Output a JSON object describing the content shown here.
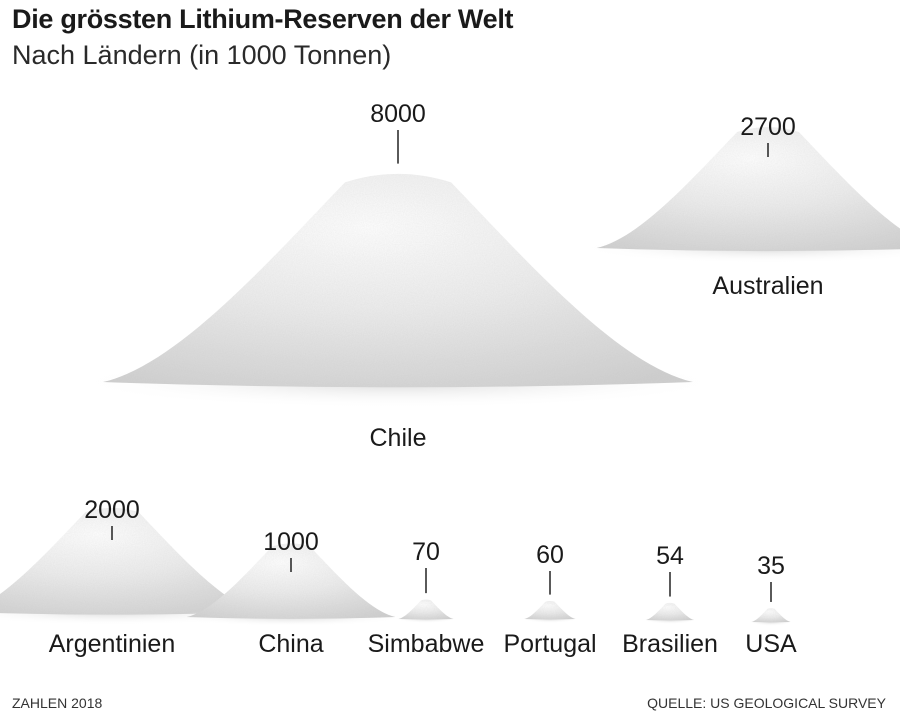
{
  "title": "Die grössten Lithium-Reserven der Welt",
  "subtitle": "Nach Ländern (in 1000 Tonnen)",
  "footer": {
    "left": "ZAHLEN 2018",
    "right": "QUELLE: US GEOLOGICAL SURVEY"
  },
  "chart_data": {
    "type": "bar",
    "categories": [
      "Chile",
      "Australien",
      "Argentinien",
      "China",
      "Simbabwe",
      "Portugal",
      "Brasilien",
      "USA"
    ],
    "values": [
      8000,
      2700,
      2000,
      1000,
      70,
      60,
      54,
      35
    ],
    "value_labels": [
      "8000",
      "2700",
      "2000",
      "1000",
      "70",
      "60",
      "54",
      "35"
    ],
    "mark": "powder-pile",
    "colors": {
      "pile": "#e9e9e9",
      "pile_shadow": "#c9c9c9",
      "pile_highlight": "#ffffff",
      "leader": "#222222"
    }
  }
}
